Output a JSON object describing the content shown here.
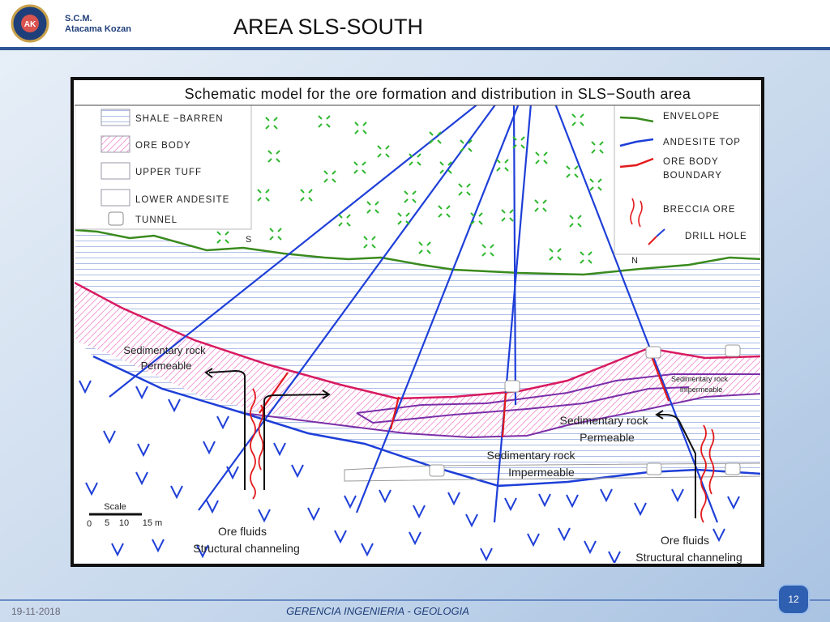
{
  "header": {
    "logo_abbr": "AK",
    "logo_line1": "S.C.M.",
    "logo_line2": "Atacama Kozan",
    "title": "AREA SLS-SOUTH"
  },
  "diagram": {
    "title": "Schematic model for the ore formation and distribution in SLS−South area",
    "legend_left": [
      "SHALE −BARREN",
      "ORE BODY",
      "UPPER TUFF",
      "LOWER ANDESITE",
      "TUNNEL"
    ],
    "legend_right": [
      "ENVELOPE",
      "ANDESITE TOP",
      "ORE BODY",
      "BOUNDARY",
      "BRECCIA ORE",
      "DRILL HOLE"
    ],
    "south": "S",
    "north": "N",
    "annotations": [
      [
        "Sedimentary rock",
        "Permeable"
      ],
      [
        "Sedimentary rock",
        "Impermeable"
      ],
      [
        "Sedimentary rock",
        "Permeable"
      ],
      [
        "Sedimentary rock",
        "Impermeable"
      ],
      [
        "Ore fluids",
        "Structural channeling"
      ],
      [
        "Ore fluids",
        "Structural channeling"
      ]
    ],
    "scale": {
      "title": "Scale",
      "ticks": [
        "0",
        "5",
        "10",
        "15 m"
      ]
    }
  },
  "footer": {
    "date": "19-11-2018",
    "department": "GERENCIA INGENIERIA - GEOLOGIA",
    "page": "12"
  }
}
